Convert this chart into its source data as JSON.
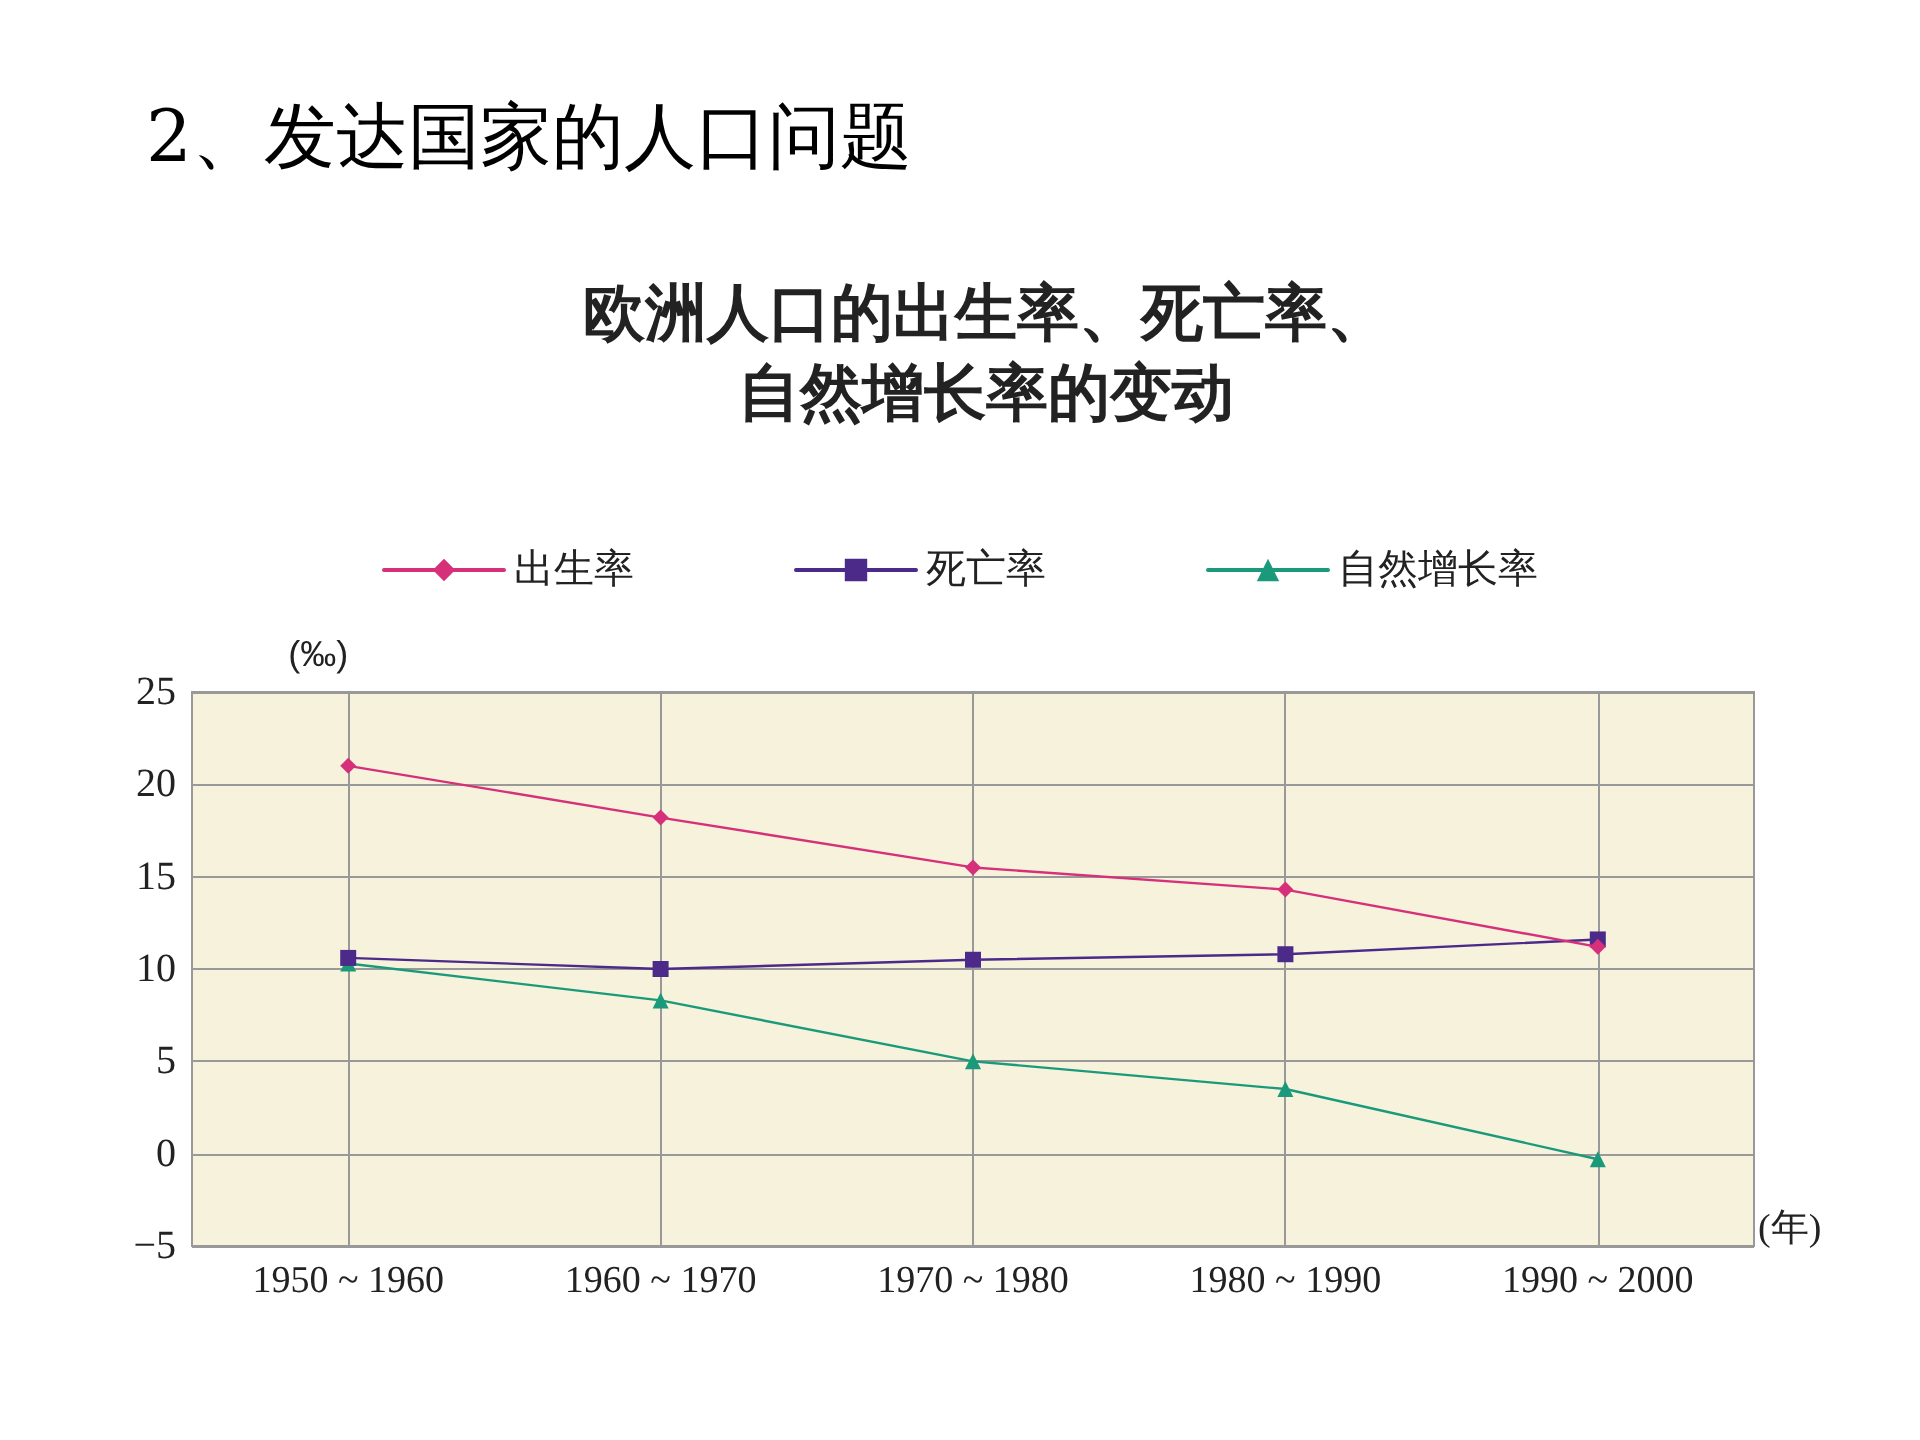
{
  "chart_data": {
    "type": "line",
    "title": "2、发达国家的人口问题",
    "subtitle": "欧洲人口的出生率、死亡率、自然增长率的变动",
    "ylabel": "(‰)",
    "xlabel": "(年)",
    "categories": [
      "1950 ~ 1960",
      "1960 ~ 1970",
      "1970 ~ 1980",
      "1980 ~ 1990",
      "1990 ~ 2000"
    ],
    "series": [
      {
        "name": "出生率",
        "color": "#d6307a",
        "marker": "diamond",
        "values": [
          21.0,
          18.2,
          15.5,
          14.3,
          11.2
        ]
      },
      {
        "name": "死亡率",
        "color": "#4b2a8a",
        "marker": "square",
        "values": [
          10.6,
          10.0,
          10.5,
          10.8,
          11.6
        ]
      },
      {
        "name": "自然增长率",
        "color": "#1a9a7a",
        "marker": "triangle",
        "values": [
          10.3,
          8.3,
          5.0,
          3.5,
          -0.3
        ]
      }
    ],
    "ylim": [
      -5,
      25
    ],
    "yticks": [
      -5,
      0,
      5,
      10,
      15,
      20,
      25
    ],
    "grid": true,
    "legend": "top",
    "line_style": "solid"
  }
}
